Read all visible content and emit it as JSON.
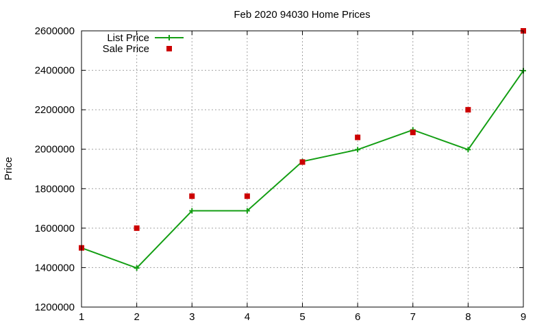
{
  "chart_data": {
    "type": "line",
    "title": "Feb 2020 94030 Home Prices",
    "xlabel": "",
    "ylabel": "Price",
    "x": [
      1,
      2,
      3,
      4,
      5,
      6,
      7,
      8,
      9
    ],
    "xlim": [
      1,
      9
    ],
    "ylim": [
      1200000,
      2600000
    ],
    "xticks": [
      "1",
      "2",
      "3",
      "4",
      "5",
      "6",
      "7",
      "8",
      "9"
    ],
    "yticks": [
      "1200000",
      "1400000",
      "1600000",
      "1800000",
      "2000000",
      "2200000",
      "2400000",
      "2600000"
    ],
    "grid": true,
    "legend_position": "top-left",
    "series": [
      {
        "name": "List Price",
        "style": "line+cross",
        "color": "#139e13",
        "values": [
          1500000,
          1398000,
          1688000,
          1688000,
          1938000,
          1998000,
          2098000,
          1998000,
          2398000
        ]
      },
      {
        "name": "Sale Price",
        "style": "square",
        "color": "#cc0000",
        "values": [
          1500000,
          1600000,
          1762000,
          1762000,
          1935000,
          2060000,
          2085000,
          2200000,
          2600000
        ]
      }
    ]
  }
}
